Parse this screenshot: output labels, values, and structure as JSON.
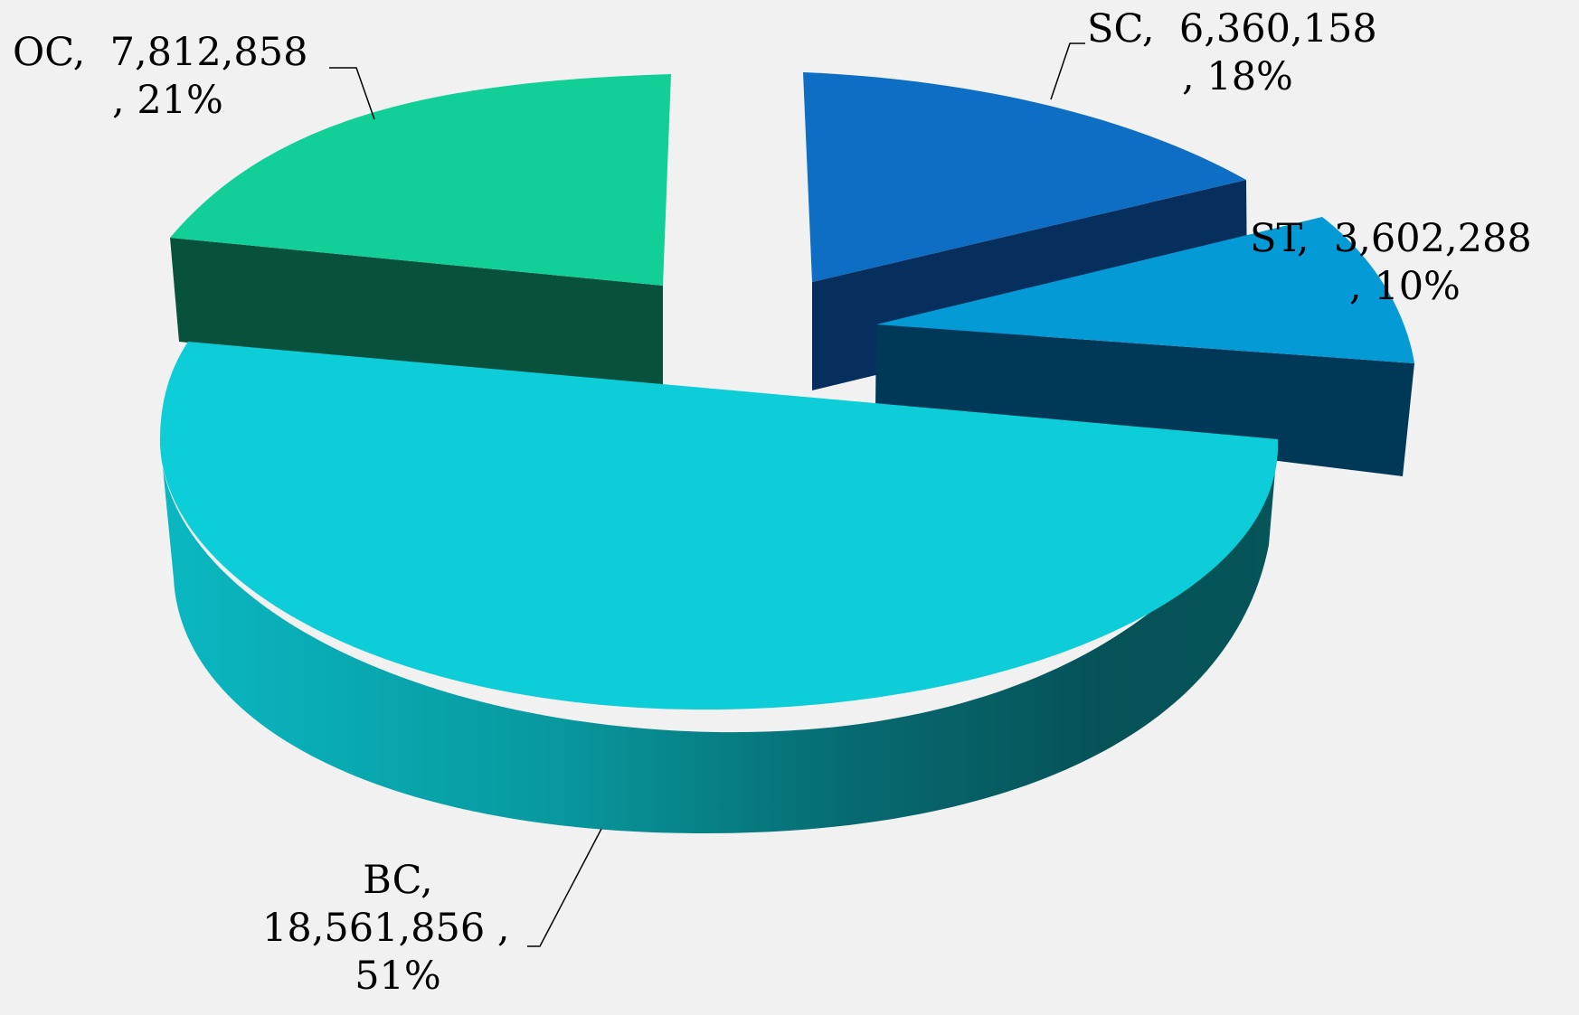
{
  "chart_data": {
    "type": "pie",
    "three_d": true,
    "legend": "none",
    "slices": [
      {
        "category": "OC",
        "value": 7812858,
        "value_label": "7,812,858",
        "percent": 21,
        "percent_label": "21%",
        "color": "#12cf98",
        "side_color": "#07513d",
        "exploded": true
      },
      {
        "category": "SC",
        "value": 6360158,
        "value_label": "6,360,158",
        "percent": 18,
        "percent_label": "18%",
        "color": "#0e6ec4",
        "side_color": "#072f5e",
        "exploded": true
      },
      {
        "category": "ST",
        "value": 3602288,
        "value_label": "3,602,288",
        "percent": 10,
        "percent_label": "10%",
        "color": "#039ad6",
        "side_color": "#003957",
        "exploded": true
      },
      {
        "category": "BC",
        "value": 18561856,
        "value_label": "18,561,856",
        "percent": 51,
        "percent_label": "51%",
        "color": "#0dcdd8",
        "side_color": "#055559",
        "exploded": false
      }
    ]
  }
}
